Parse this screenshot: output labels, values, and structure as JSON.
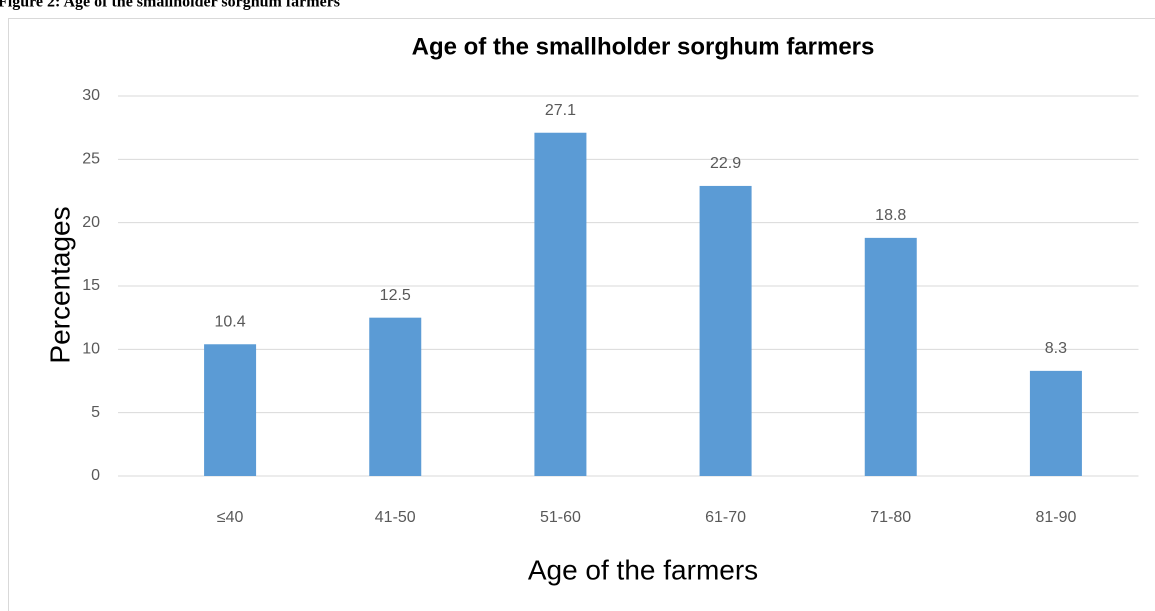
{
  "caption": "Figure 2: Age of the smallholder sorghum farmers",
  "chart_data": {
    "type": "bar",
    "title": "Age of the smallholder sorghum farmers",
    "categories": [
      "≤40",
      "41-50",
      "51-60",
      "61-70",
      "71-80",
      "81-90"
    ],
    "values": [
      10.4,
      12.5,
      27.1,
      22.9,
      18.8,
      8.3
    ],
    "color": "#5b9bd5",
    "ylim": [
      0,
      30
    ],
    "yticks": [
      0,
      5,
      10,
      15,
      20,
      25,
      30
    ],
    "grid": true,
    "xlabel": "Age of the farmers",
    "ylabel": "Percentages"
  }
}
